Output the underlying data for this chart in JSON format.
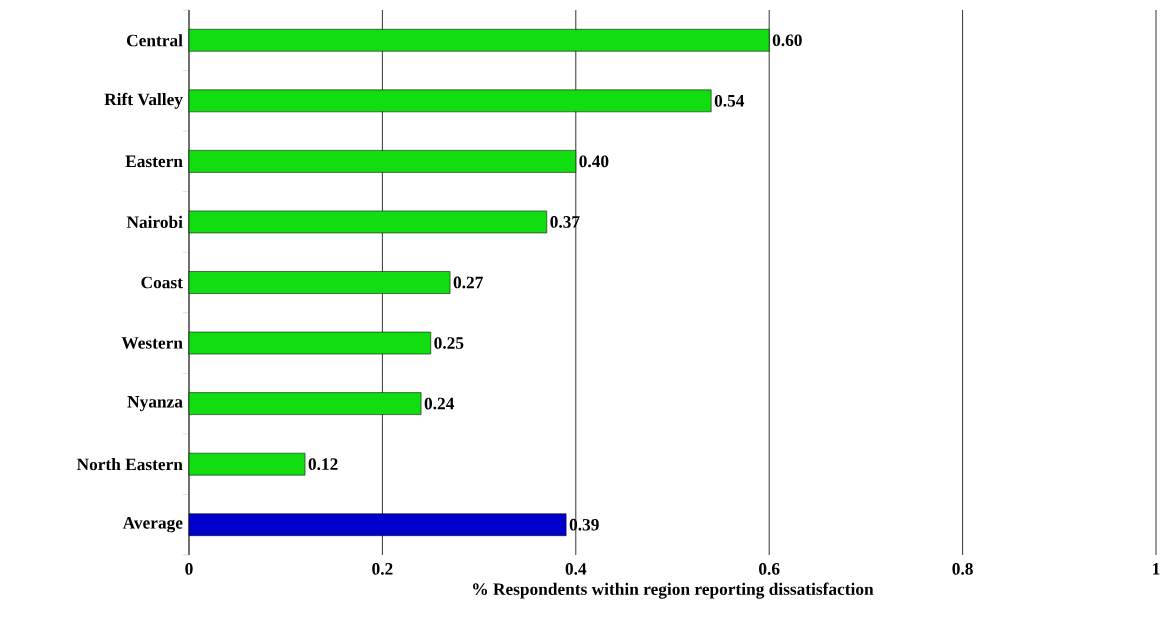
{
  "chart_data": {
    "type": "bar",
    "orientation": "horizontal",
    "xlabel": "% Respondents within region reporting dissatisfaction",
    "categories": [
      "Central",
      "Rift Valley",
      "Eastern",
      "Nairobi",
      "Coast",
      "Western",
      "Nyanza",
      "North Eastern",
      "Average"
    ],
    "values": [
      0.6,
      0.54,
      0.4,
      0.37,
      0.27,
      0.25,
      0.24,
      0.12,
      0.39
    ],
    "value_labels": [
      "0.60",
      "0.54",
      "0.40",
      "0.37",
      "0.27",
      "0.25",
      "0.24",
      "0.12",
      "0.39"
    ],
    "colors": [
      "#11dd11",
      "#11dd11",
      "#11dd11",
      "#11dd11",
      "#11dd11",
      "#11dd11",
      "#11dd11",
      "#11dd11",
      "#0000cc"
    ],
    "xlim": [
      0,
      1
    ],
    "xticks": [
      0,
      0.2,
      0.4,
      0.6,
      0.8,
      1
    ],
    "grid": "x"
  }
}
